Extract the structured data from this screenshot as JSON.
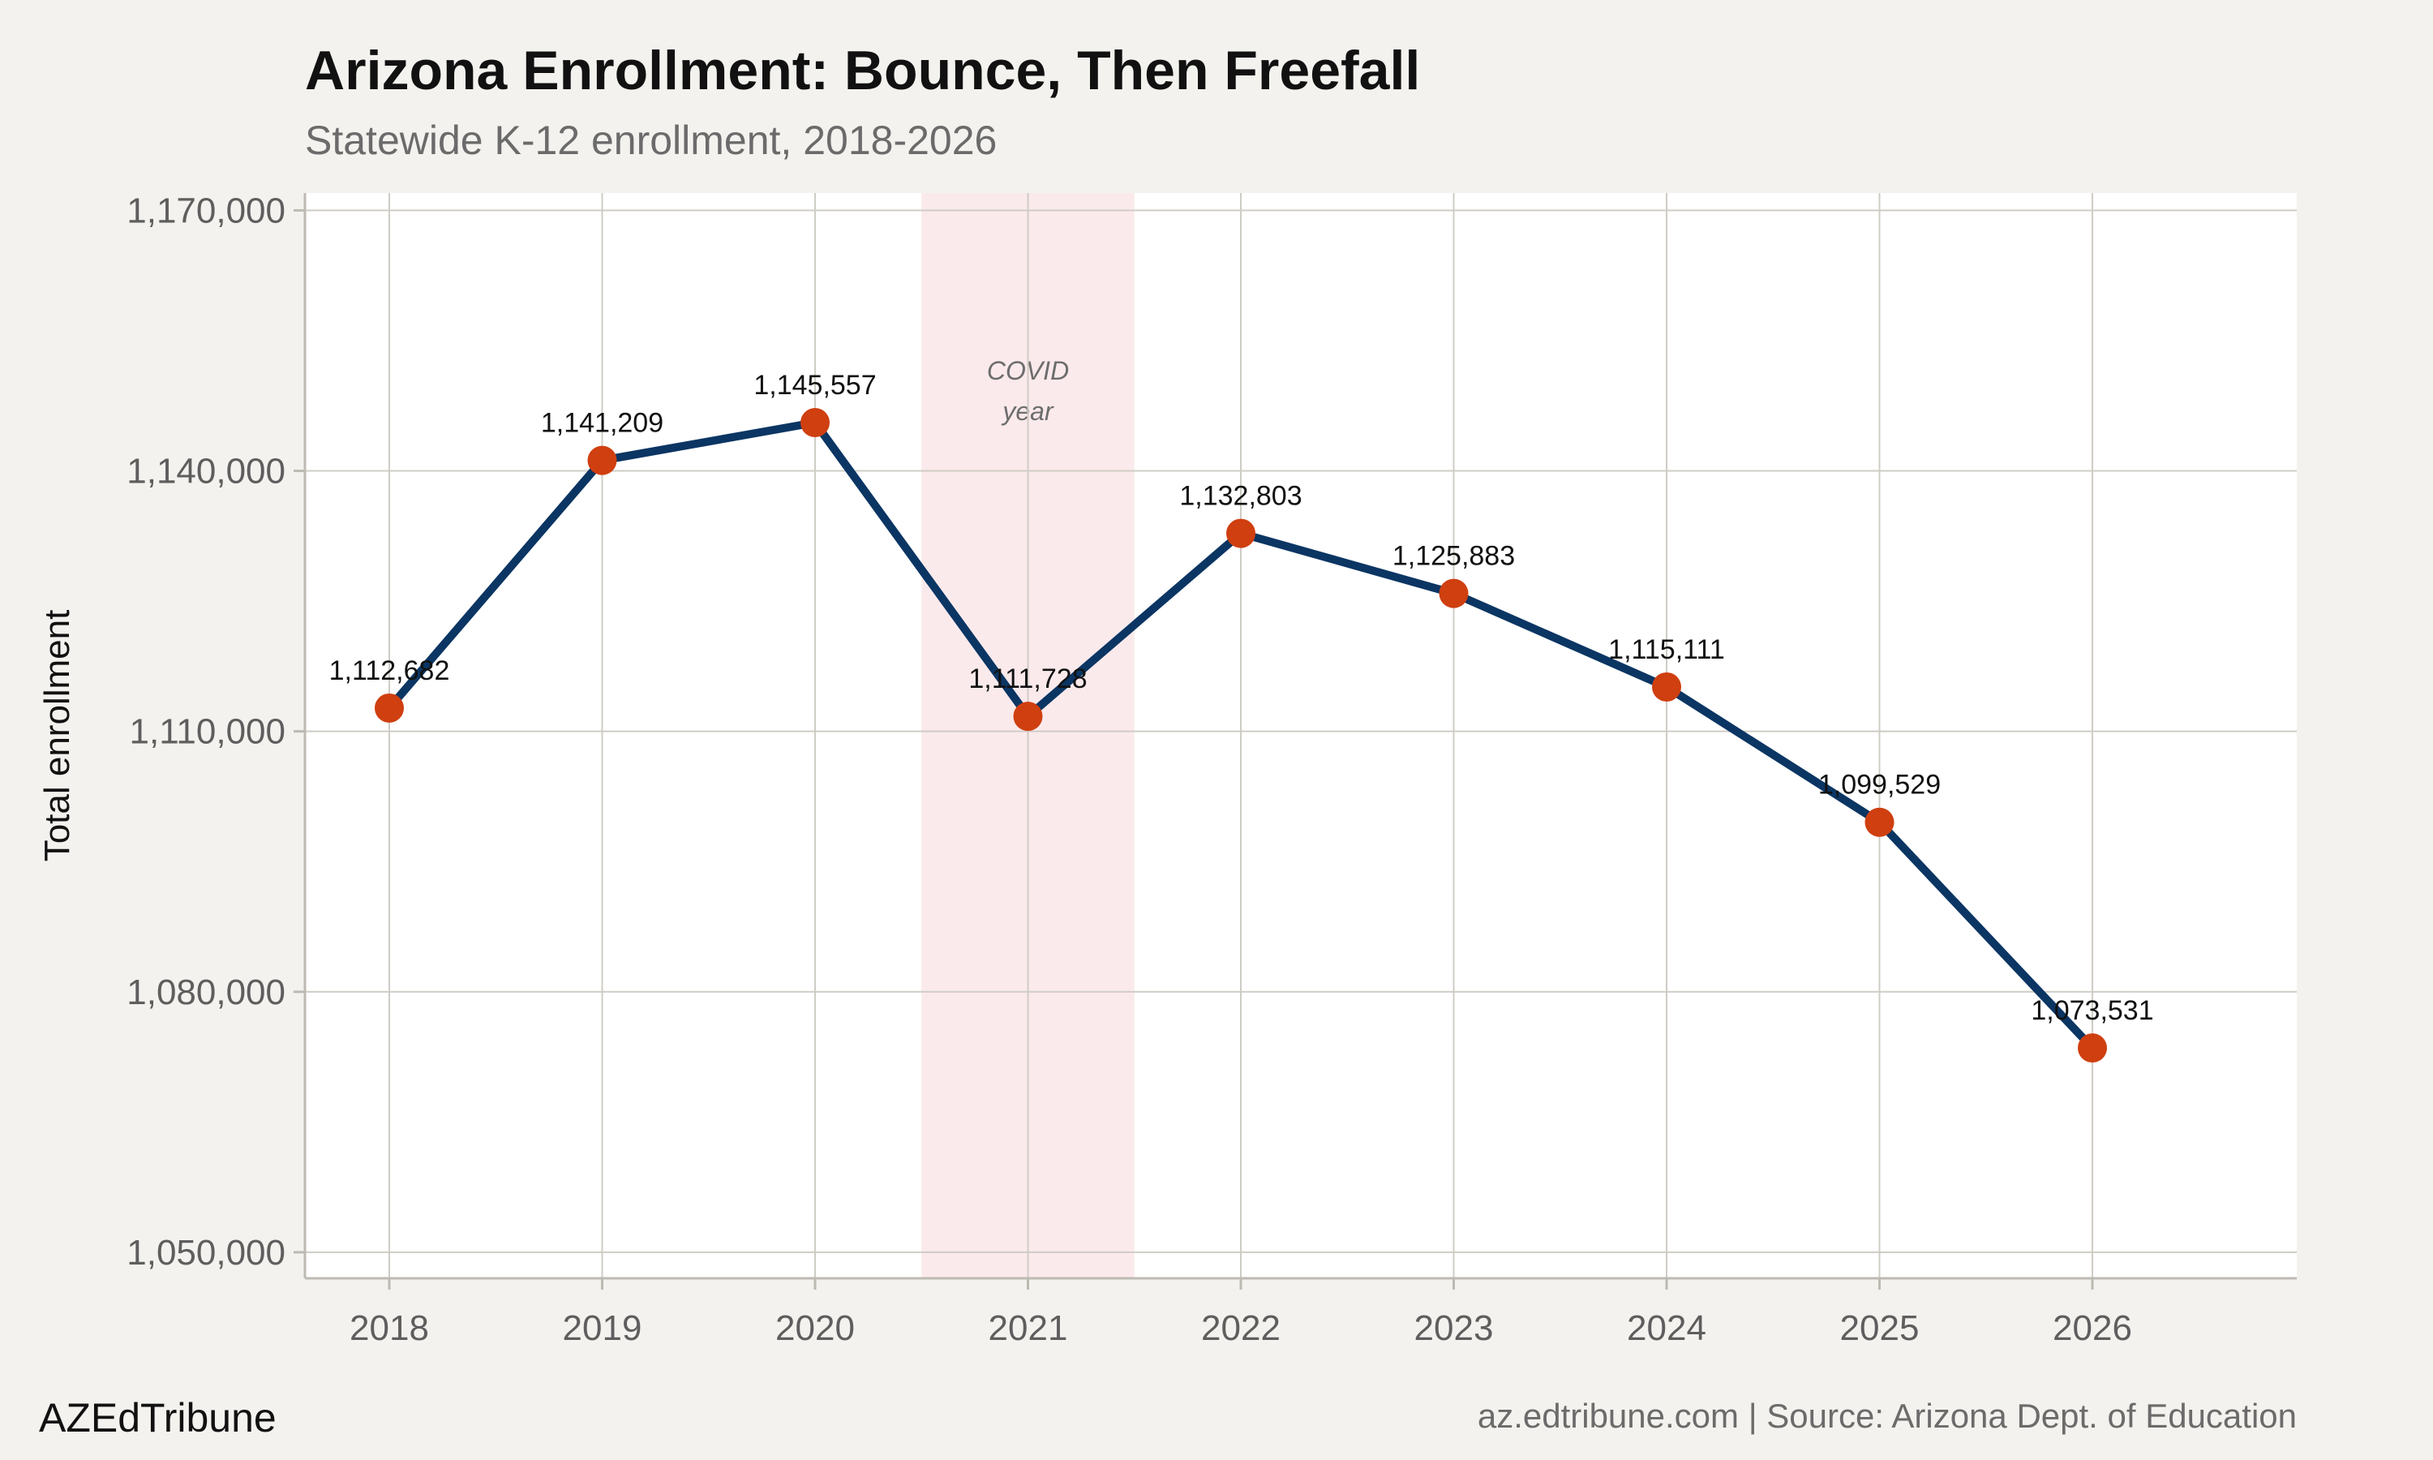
{
  "colors": {
    "background": "#f4f2ee",
    "panel": "#ffffff",
    "grid": "#cfccc5",
    "line": "#0b3563",
    "point": "#cf3f10",
    "highlight": "#fbeaec"
  },
  "chart_data": {
    "type": "line",
    "title": "Arizona Enrollment: Bounce, Then Freefall",
    "subtitle": "Statewide K-12 enrollment, 2018-2026",
    "xlabel": "",
    "ylabel": "Total enrollment",
    "x": [
      "2018",
      "2019",
      "2020",
      "2021",
      "2022",
      "2023",
      "2024",
      "2025",
      "2026"
    ],
    "series": [
      {
        "values": [
          1112682,
          1141209,
          1145557,
          1111728,
          1132803,
          1125883,
          1115111,
          1099529,
          1073531
        ],
        "labels": [
          "1,112,682",
          "1,141,209",
          "1,145,557",
          "1,111,728",
          "1,132,803",
          "1,125,883",
          "1,115,111",
          "1,099,529",
          "1,073,531"
        ]
      }
    ],
    "ylim": [
      1047000,
      1172000
    ],
    "yticks": [
      1050000,
      1080000,
      1110000,
      1140000,
      1170000
    ],
    "ytick_labels": [
      "1,050,000",
      "1,080,000",
      "1,110,000",
      "1,140,000",
      "1,170,000"
    ],
    "grid": true,
    "highlight": {
      "x": "2021",
      "label_line1": "COVID",
      "label_line2": "year"
    },
    "brand": "AZEdTribune",
    "source": "az.edtribune.com | Source: Arizona Dept. of Education"
  }
}
